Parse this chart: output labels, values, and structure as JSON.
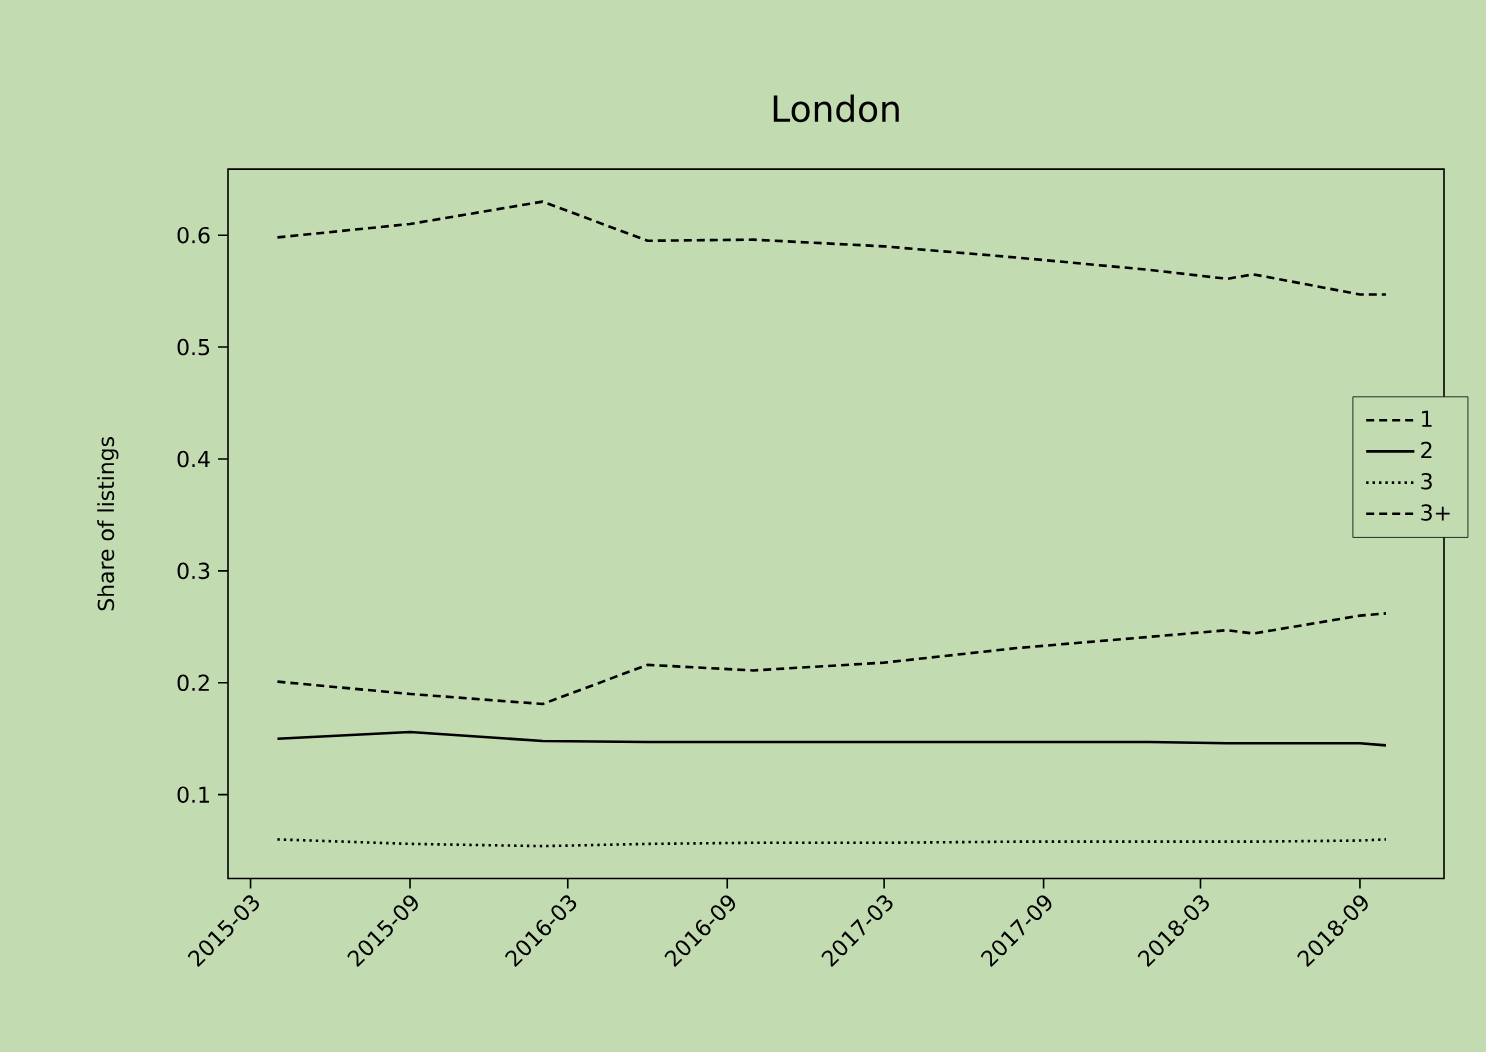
{
  "chart_data": {
    "type": "line",
    "title": "London",
    "ylabel": "Share of listings",
    "x": [
      "2015-04",
      "2015-09",
      "2016-02",
      "2016-06",
      "2016-10",
      "2017-03",
      "2017-08",
      "2018-01",
      "2018-04",
      "2018-05",
      "2018-09",
      "2018-10"
    ],
    "series": [
      {
        "name": "1",
        "color": "#000000",
        "line_style": "dashed",
        "values": [
          0.598,
          0.61,
          0.63,
          0.595,
          0.596,
          0.59,
          0.58,
          0.569,
          0.561,
          0.565,
          0.547,
          0.547
        ]
      },
      {
        "name": "2",
        "color": "#000000",
        "line_style": "solid",
        "values": [
          0.15,
          0.156,
          0.148,
          0.147,
          0.147,
          0.147,
          0.147,
          0.147,
          0.146,
          0.146,
          0.146,
          0.144
        ]
      },
      {
        "name": "3",
        "color": "#000000",
        "line_style": "dotted",
        "values": [
          0.06,
          0.056,
          0.054,
          0.056,
          0.057,
          0.057,
          0.058,
          0.058,
          0.058,
          0.058,
          0.059,
          0.06
        ]
      },
      {
        "name": "3+",
        "color": "#000000",
        "line_style": "dashed",
        "values": [
          0.201,
          0.19,
          0.181,
          0.216,
          0.211,
          0.218,
          0.231,
          0.241,
          0.247,
          0.244,
          0.26,
          0.262
        ]
      }
    ],
    "xlim": [
      "2015-02-03",
      "2018-12-07"
    ],
    "xticks": [
      "2015-03",
      "2015-09",
      "2016-03",
      "2016-09",
      "2017-03",
      "2017-09",
      "2018-03",
      "2018-09"
    ],
    "ylim": [
      0.025,
      0.659
    ],
    "yticks": [
      0.1,
      0.2,
      0.3,
      0.4,
      0.5,
      0.6
    ],
    "grid": false,
    "legend": "right",
    "marker": "none"
  }
}
